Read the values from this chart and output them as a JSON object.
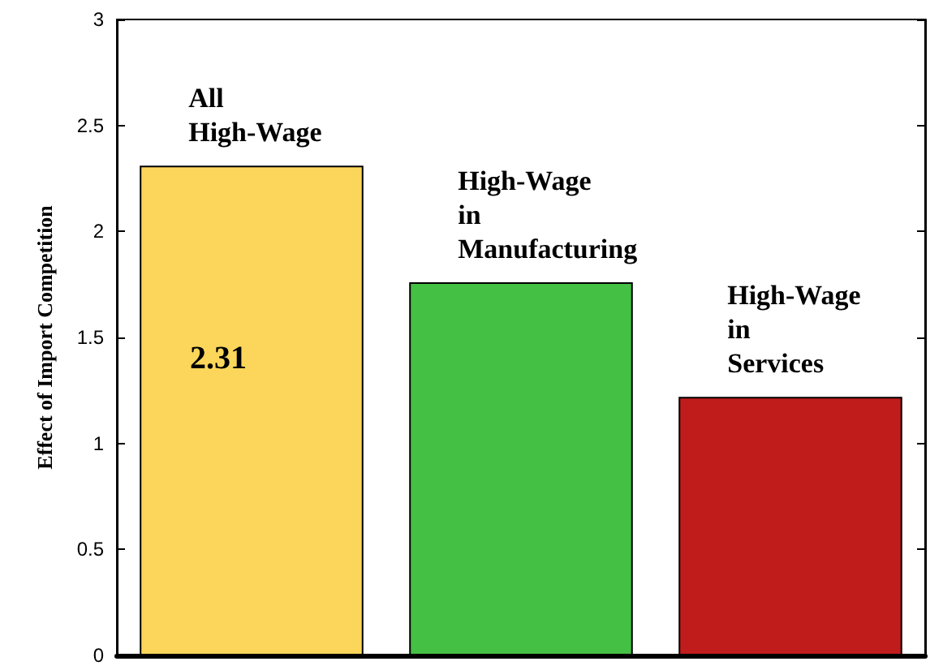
{
  "chart_data": {
    "type": "bar",
    "ylabel": "Effect of Import Competition",
    "categories": [
      "All\nHigh-Wage",
      "High-Wage\nin\nManufacturing",
      "High-Wage\nin\nServices"
    ],
    "values": [
      2.31,
      1.76,
      1.22
    ],
    "colors": [
      "#fcd65a",
      "#44c044",
      "#c01c1c"
    ],
    "value_labels": [
      "2.31",
      null,
      null
    ],
    "ylim": [
      0,
      3
    ],
    "yticks": [
      0,
      0.5,
      1,
      1.5,
      2,
      2.5,
      3
    ],
    "grid": false
  }
}
